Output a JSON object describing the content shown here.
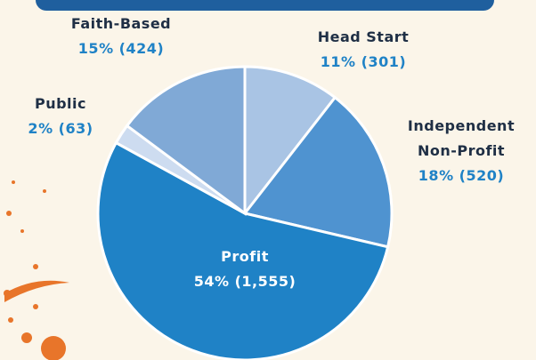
{
  "chart_data": {
    "type": "pie",
    "categories": [
      "Head Start",
      "Independent Non-Profit",
      "Profit",
      "Public",
      "Faith-Based"
    ],
    "values": [
      301,
      520,
      1555,
      63,
      424
    ],
    "value_labels": [
      "(301)",
      "(520)",
      "(1,555)",
      "(63)",
      "(424)"
    ],
    "percent_labels": [
      "11%",
      "18%",
      "54%",
      "2%",
      "15%"
    ],
    "colors": [
      "#a9c4e4",
      "#4f93d0",
      "#1f82c6",
      "#cddcf0",
      "#80a9d6"
    ]
  }
}
